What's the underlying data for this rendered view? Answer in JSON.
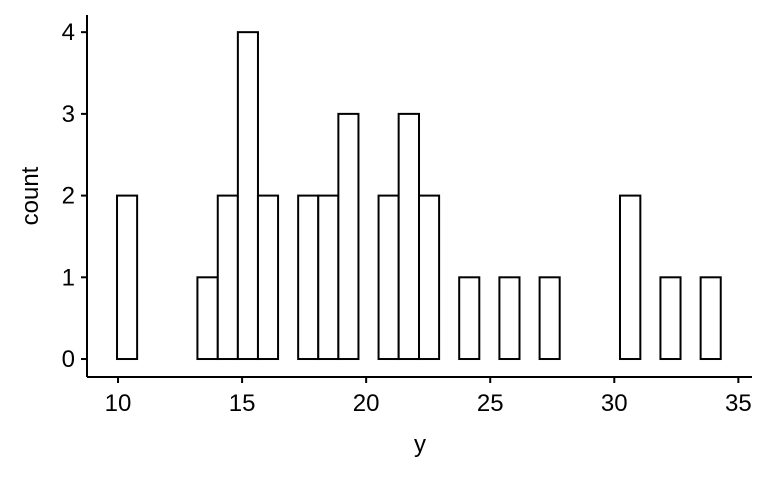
{
  "chart_data": {
    "type": "histogram",
    "x_label": "y",
    "y_label": "count",
    "bins": [
      9.96,
      10.77,
      11.58,
      12.39,
      13.2,
      14.02,
      14.83,
      15.64,
      16.45,
      17.26,
      18.07,
      18.88,
      19.69,
      20.5,
      21.31,
      22.13,
      22.94,
      23.75,
      24.56,
      25.37,
      26.18,
      26.99,
      27.8,
      28.61,
      29.42,
      30.23,
      31.05,
      31.86,
      32.67,
      33.48,
      34.29
    ],
    "values": [
      2,
      0,
      0,
      0,
      1,
      2,
      4,
      2,
      0,
      2,
      2,
      3,
      0,
      2,
      3,
      2,
      0,
      1,
      0,
      1,
      0,
      1,
      0,
      0,
      0,
      2,
      0,
      1,
      0,
      1
    ],
    "color": "#ffffff",
    "edge_color": "#000000",
    "xlim": [
      8.75,
      35.55
    ],
    "xticks": [
      10,
      15,
      20,
      25,
      30,
      35
    ],
    "ylim": [
      -0.22,
      4.21
    ],
    "yticks": [
      0,
      1,
      2,
      3,
      4
    ]
  }
}
